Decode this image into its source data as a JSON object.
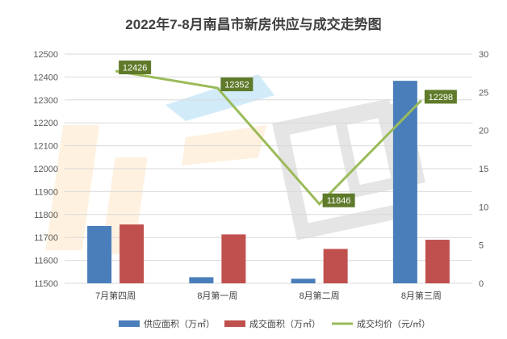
{
  "chart_data": {
    "type": "bar",
    "title": "2022年7-8月南昌市新房供应与成交走势图",
    "categories": [
      "7月第四周",
      "8月第一周",
      "8月第二周",
      "8月第三周"
    ],
    "y_left": {
      "ylim": [
        11500,
        12500
      ],
      "ticks": [
        11500,
        11600,
        11700,
        11800,
        11900,
        12000,
        12100,
        12200,
        12300,
        12400,
        12500
      ]
    },
    "y_right": {
      "ylim": [
        0,
        30
      ],
      "ticks": [
        0,
        5,
        10,
        15,
        20,
        25,
        30
      ]
    },
    "series": [
      {
        "name": "供应面积（万㎡）",
        "type": "bar",
        "axis": "right",
        "color": "#4a7ebb",
        "values": [
          7.5,
          0.8,
          0.6,
          26.5
        ]
      },
      {
        "name": "成交面积（万㎡）",
        "type": "bar",
        "axis": "right",
        "color": "#c0504d",
        "values": [
          7.7,
          6.4,
          4.5,
          5.7
        ]
      },
      {
        "name": "成交均价（元/㎡）",
        "type": "line",
        "axis": "left",
        "color": "#9bbb59",
        "values": [
          12426,
          12352,
          11846,
          12298
        ],
        "labels": [
          "12426",
          "12352",
          "11846",
          "12298"
        ],
        "label_bg": "#5f7a2a"
      }
    ],
    "grid": true,
    "legend_position": "bottom"
  }
}
